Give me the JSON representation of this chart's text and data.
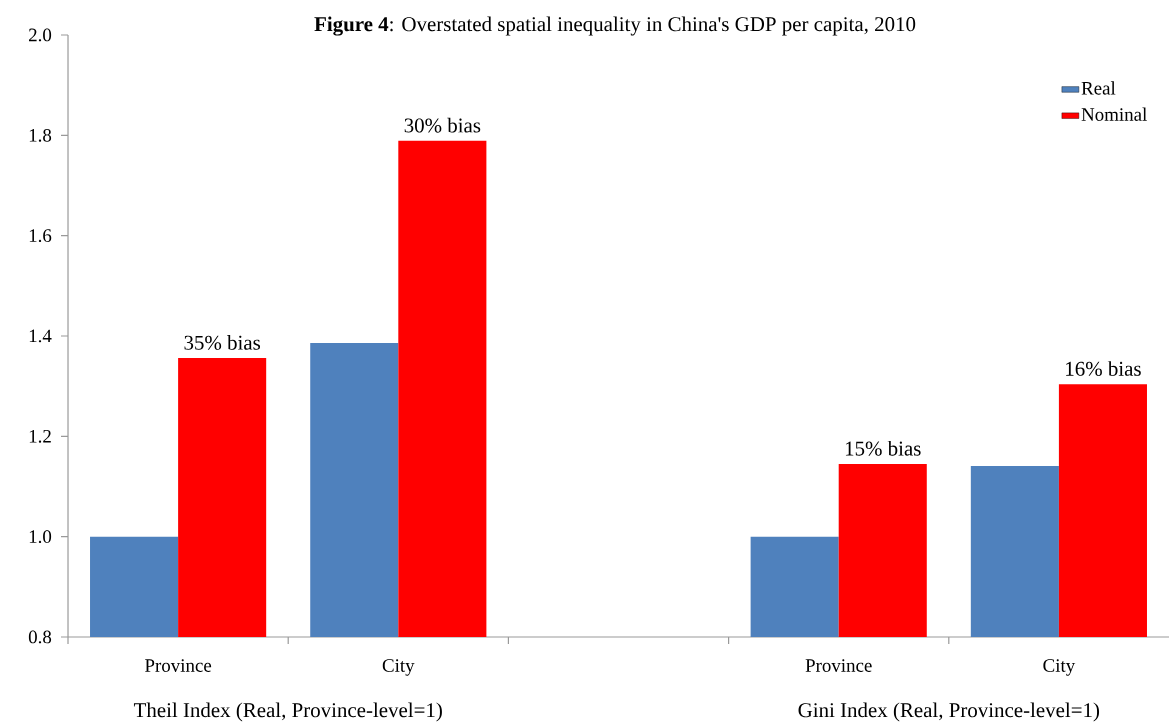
{
  "chart_data": {
    "type": "bar",
    "title": "**Figure 4**: Overstated spatial inequality in China's GDP per capita, 2010",
    "categories": [
      "Province",
      "City",
      null,
      "Province",
      "City"
    ],
    "series": [
      {
        "name": "Real",
        "color": "#4f81bd",
        "values": [
          1.0,
          1.386,
          null,
          1.0,
          1.141
        ]
      },
      {
        "name": "Nominal",
        "color": "#ff0000",
        "values": [
          1.356,
          1.789,
          null,
          1.145,
          1.304
        ]
      }
    ],
    "ylim": [
      0.8,
      2.0
    ],
    "yticks": [
      0.8,
      {
        "value": 1,
        "label": "1.0"
      },
      1.2,
      1.4,
      1.6,
      1.8,
      {
        "value": 2,
        "label": "2.0"
      }
    ],
    "annotations": [
      "Theil Index (Real, Province-level=1)",
      "Gini Index (Real, Province-level=1)",
      "35% bias",
      "30% bias",
      "15% bias",
      "16% bias"
    ],
    "legend": "top right",
    "grid": false
  }
}
